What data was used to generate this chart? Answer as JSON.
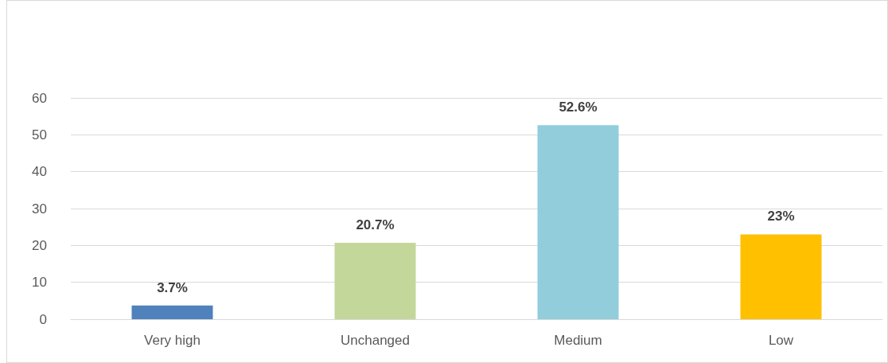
{
  "chart_data": {
    "type": "bar",
    "categories": [
      "Very high",
      "Unchanged",
      "Medium",
      "Low"
    ],
    "values": [
      3.7,
      20.7,
      52.6,
      23
    ],
    "colors": [
      "#4f81bd",
      "#c4d79b",
      "#92cddc",
      "#ffc000"
    ],
    "value_labels": [
      "3.7%",
      "20.7%",
      "52.6%",
      "23%"
    ],
    "ylim": [
      0,
      60
    ],
    "yticks": [
      0,
      10,
      20,
      30,
      40,
      50,
      60
    ],
    "grid": "y"
  }
}
